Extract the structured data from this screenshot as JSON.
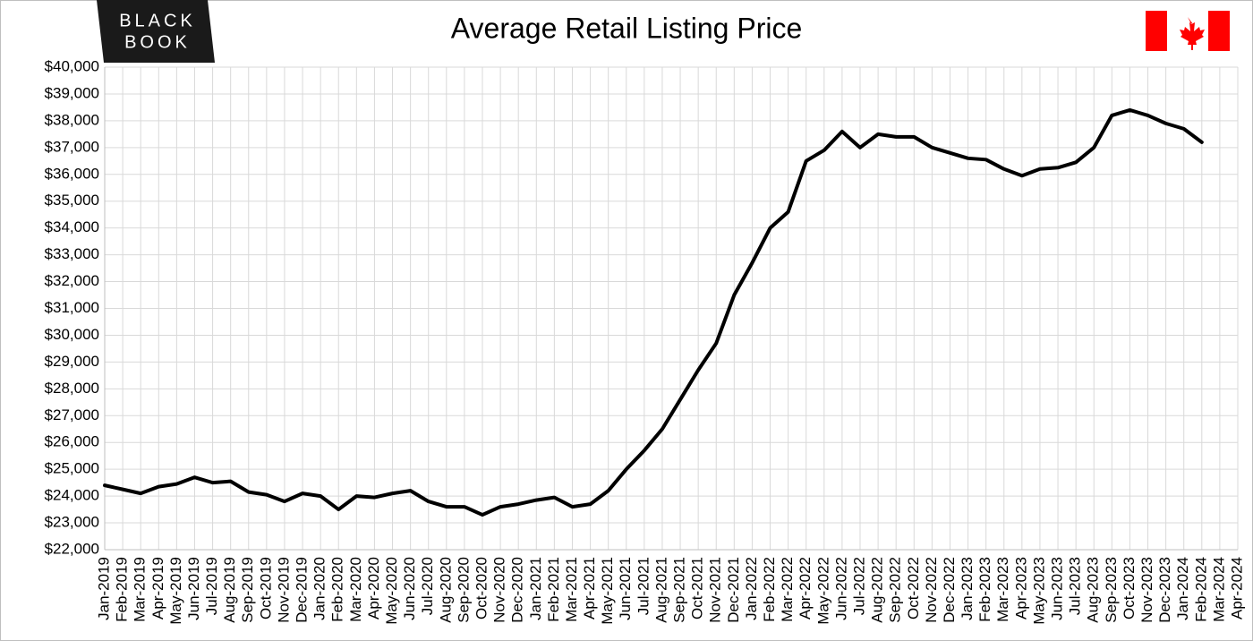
{
  "logo_lines": [
    "BLACK",
    "BOOK"
  ],
  "chart_data": {
    "type": "line",
    "title": "Average Retail Listing Price",
    "categories": [
      "Jan-2019",
      "Feb-2019",
      "Mar-2019",
      "Apr-2019",
      "May-2019",
      "Jun-2019",
      "Jul-2019",
      "Aug-2019",
      "Sep-2019",
      "Oct-2019",
      "Nov-2019",
      "Dec-2019",
      "Jan-2020",
      "Feb-2020",
      "Mar-2020",
      "Apr-2020",
      "May-2020",
      "Jun-2020",
      "Jul-2020",
      "Aug-2020",
      "Sep-2020",
      "Oct-2020",
      "Nov-2020",
      "Dec-2020",
      "Jan-2021",
      "Feb-2021",
      "Mar-2021",
      "Apr-2021",
      "May-2021",
      "Jun-2021",
      "Jul-2021",
      "Aug-2021",
      "Sep-2021",
      "Oct-2021",
      "Nov-2021",
      "Dec-2021",
      "Jan-2022",
      "Feb-2022",
      "Mar-2022",
      "Apr-2022",
      "May-2022",
      "Jun-2022",
      "Jul-2022",
      "Aug-2022",
      "Sep-2022",
      "Oct-2022",
      "Nov-2022",
      "Dec-2022",
      "Jan-2023",
      "Feb-2023",
      "Mar-2023",
      "Apr-2023",
      "May-2023",
      "Jun-2023",
      "Jul-2023",
      "Aug-2023",
      "Sep-2023",
      "Oct-2023",
      "Nov-2023",
      "Dec-2023",
      "Jan-2024",
      "Feb-2024",
      "Mar-2024",
      "Apr-2024"
    ],
    "values": [
      24400,
      24250,
      24100,
      24350,
      24450,
      24700,
      24500,
      24550,
      24150,
      24050,
      23800,
      24100,
      24000,
      23500,
      24000,
      23950,
      24100,
      24200,
      23800,
      23600,
      23600,
      23300,
      23600,
      23700,
      23850,
      23950,
      23600,
      23700,
      24200,
      25000,
      25700,
      26500,
      27600,
      28700,
      29700,
      31500,
      32700,
      34000,
      34600,
      36500,
      36900,
      37600,
      37000,
      37500,
      37400,
      37400,
      37000,
      36800,
      36600,
      36550,
      36200,
      35950,
      36200,
      36250,
      36450,
      37000,
      38200,
      38400,
      38200,
      37900,
      37700,
      37200,
      null,
      null
    ],
    "color": "#000000",
    "ylim": [
      22000,
      40000
    ],
    "yticks": [
      {
        "value": 22000,
        "label": "$22,000"
      },
      {
        "value": 23000,
        "label": "$23,000"
      },
      {
        "value": 24000,
        "label": "$24,000"
      },
      {
        "value": 25000,
        "label": "$25,000"
      },
      {
        "value": 26000,
        "label": "$26,000"
      },
      {
        "value": 27000,
        "label": "$27,000"
      },
      {
        "value": 28000,
        "label": "$28,000"
      },
      {
        "value": 29000,
        "label": "$29,000"
      },
      {
        "value": 30000,
        "label": "$30,000"
      },
      {
        "value": 31000,
        "label": "$31,000"
      },
      {
        "value": 32000,
        "label": "$32,000"
      },
      {
        "value": 33000,
        "label": "$33,000"
      },
      {
        "value": 34000,
        "label": "$34,000"
      },
      {
        "value": 35000,
        "label": "$35,000"
      },
      {
        "value": 36000,
        "label": "$36,000"
      },
      {
        "value": 37000,
        "label": "$37,000"
      },
      {
        "value": 38000,
        "label": "$38,000"
      },
      {
        "value": 39000,
        "label": "$39,000"
      },
      {
        "value": 40000,
        "label": "$40,000"
      }
    ],
    "grid": true
  }
}
